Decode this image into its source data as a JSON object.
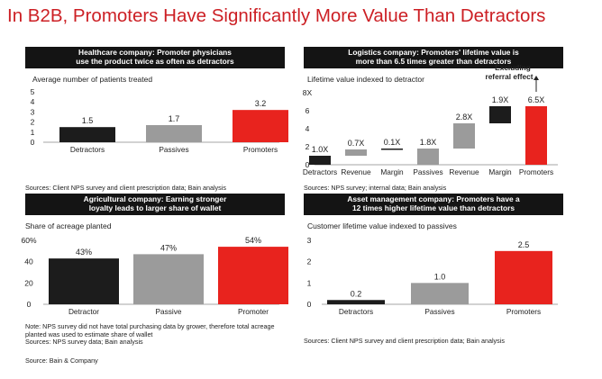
{
  "page_title": "In B2B, Promoters Have Significantly More Value Than Detractors",
  "source": "Source: Bain & Company",
  "colors": {
    "title": "#cc1f24",
    "dark": "#1c1c1c",
    "gray": "#9b9b9b",
    "red": "#e8231e",
    "header_bg": "#141414"
  },
  "chart_data": [
    {
      "type": "bar",
      "header": [
        "Healthcare company: Promoter physicians",
        "use the product twice as often as detractors"
      ],
      "subtitle": "Average number of patients treated",
      "categories": [
        "Detractors",
        "Passives",
        "Promoters"
      ],
      "values": [
        1.5,
        1.7,
        3.2
      ],
      "labels": [
        "1.5",
        "1.7",
        "3.2"
      ],
      "bar_colors": [
        "#1c1c1c",
        "#9b9b9b",
        "#e8231e"
      ],
      "ylim": [
        0,
        5
      ],
      "yticks": [
        "0",
        "1",
        "2",
        "3",
        "4",
        "5"
      ],
      "sources": [
        "Sources: Client NPS survey and client prescription data; Bain analysis"
      ]
    },
    {
      "type": "bar",
      "subtype": "waterfall",
      "header": [
        "Logistics company: Promoters' lifetime value is",
        "more than 6.5 times greater than detractors"
      ],
      "subtitle": "Lifetime value indexed to detractor",
      "categories": [
        "Detractors",
        "Revenue",
        "Margin",
        "Passives",
        "Revenue",
        "Margin",
        "Promoters"
      ],
      "bases": [
        0,
        1.0,
        1.7,
        0,
        1.8,
        4.6,
        0
      ],
      "values": [
        1.0,
        0.7,
        0.1,
        1.8,
        2.8,
        1.9,
        6.5
      ],
      "labels": [
        "1.0X",
        "0.7X",
        "0.1X",
        "1.8X",
        "2.8X",
        "1.9X",
        "6.5X"
      ],
      "bar_colors": [
        "#1c1c1c",
        "#9b9b9b",
        "#1c1c1c",
        "#9b9b9b",
        "#9b9b9b",
        "#1c1c1c",
        "#e8231e"
      ],
      "ylim": [
        0,
        8
      ],
      "yticks": [
        "0",
        "2",
        "4",
        "6",
        "8X"
      ],
      "annotation": [
        "Excluding",
        "referral effect"
      ],
      "sources": [
        "Sources: NPS survey; internal data; Bain analysis"
      ]
    },
    {
      "type": "bar",
      "header": [
        "Agricultural company: Earning stronger",
        "loyalty leads to larger share of wallet"
      ],
      "subtitle": "Share of acreage planted",
      "categories": [
        "Detractor",
        "Passive",
        "Promoter"
      ],
      "values": [
        43,
        47,
        54
      ],
      "labels": [
        "43%",
        "47%",
        "54%"
      ],
      "bar_colors": [
        "#1c1c1c",
        "#9b9b9b",
        "#e8231e"
      ],
      "ylim": [
        0,
        60
      ],
      "yticks": [
        "0",
        "20",
        "40",
        "60%"
      ],
      "sources": [
        "Note: NPS survey did not have total purchasing data by grower, therefore total acreage",
        "planted was used to estimate share of wallet",
        "Sources: NPS survey data; Bain analysis"
      ]
    },
    {
      "type": "bar",
      "header": [
        "Asset management company: Promoters have a",
        "12 times higher lifetime value than detractors"
      ],
      "subtitle": "Customer lifetime value indexed to passives",
      "categories": [
        "Detractors",
        "Passives",
        "Promoters"
      ],
      "values": [
        0.2,
        1.0,
        2.5
      ],
      "labels": [
        "0.2",
        "1.0",
        "2.5"
      ],
      "bar_colors": [
        "#1c1c1c",
        "#9b9b9b",
        "#e8231e"
      ],
      "ylim": [
        0,
        3
      ],
      "yticks": [
        "0",
        "1",
        "2",
        "3"
      ],
      "sources": [
        "Sources: Client NPS survey and client prescription data; Bain analysis"
      ]
    }
  ]
}
